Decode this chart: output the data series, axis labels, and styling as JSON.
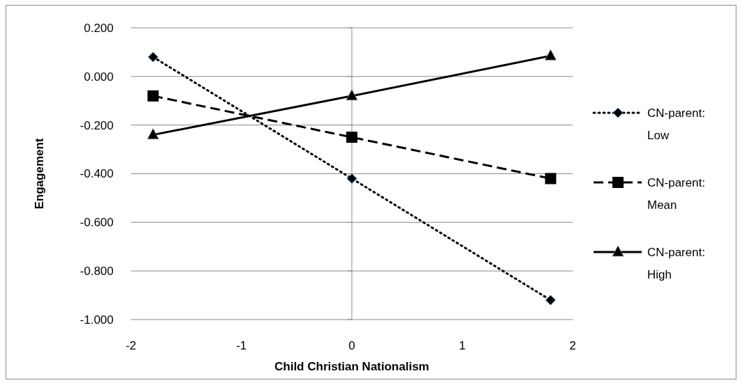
{
  "chart_data": {
    "type": "line",
    "xlabel": "Child Christian Nationalism",
    "ylabel": "Engagement",
    "xlim": [
      -2,
      2
    ],
    "xticks": [
      -2,
      -1,
      0,
      1,
      2
    ],
    "ylim": [
      -1,
      0.2
    ],
    "yticks": [
      {
        "value": -1,
        "label": "-1.000"
      },
      {
        "value": -0.8,
        "label": "-0.800"
      },
      {
        "value": -0.6,
        "label": "-0.600"
      },
      {
        "value": -0.4,
        "label": "-0.400"
      },
      {
        "value": -0.2,
        "label": "-0.200"
      },
      {
        "value": 0,
        "label": "0.000"
      },
      {
        "value": 0.2,
        "label": "0.200"
      }
    ],
    "grid": "y",
    "legend": "right",
    "ref_lines": [
      {
        "axis": "x",
        "value": 0,
        "color": "#898989"
      }
    ],
    "series": [
      {
        "name": "CN-parent: Low",
        "color": "#000000",
        "x": [
          -1.8,
          0,
          1.8
        ],
        "values": [
          0.08,
          -0.42,
          -0.92
        ],
        "marker": "diamond",
        "line_style": "dotted"
      },
      {
        "name": "CN-parent: Mean",
        "color": "#000000",
        "x": [
          -1.8,
          0,
          1.8
        ],
        "values": [
          -0.08,
          -0.25,
          -0.42
        ],
        "marker": "square",
        "line_style": "dashed"
      },
      {
        "name": "CN-parent: High",
        "color": "#000000",
        "x": [
          -1.8,
          0,
          1.8
        ],
        "values": [
          -0.24,
          -0.08,
          0.085
        ],
        "marker": "triangle",
        "line_style": "solid"
      }
    ]
  }
}
